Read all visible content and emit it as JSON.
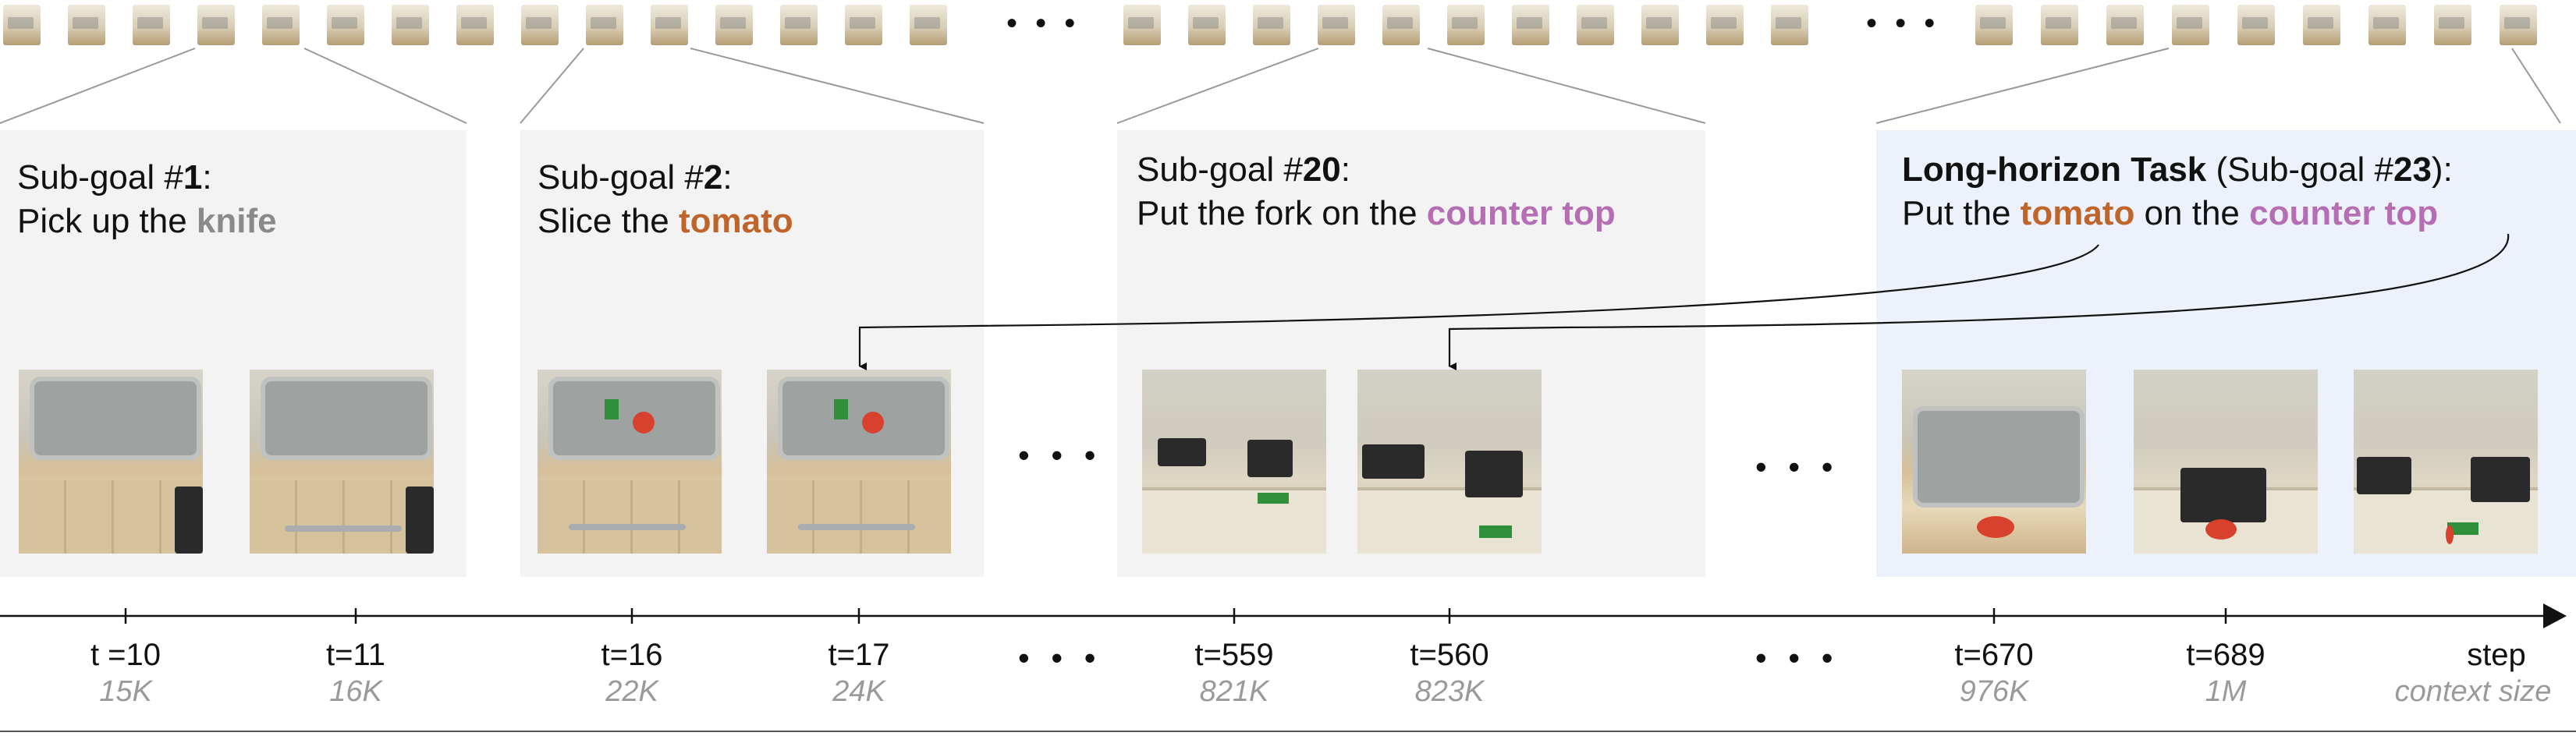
{
  "strip": {
    "frame_groups": [
      {
        "icon": "frame-thumbnail",
        "count": 15
      },
      {
        "icon": "frame-thumbnail",
        "count": 11
      },
      {
        "icon": "frame-thumbnail",
        "count": 9
      }
    ],
    "ellipsis": "• • •"
  },
  "panels": [
    {
      "prefix": "Sub-goal #",
      "num": "1",
      "colon": ":",
      "line2_pre": "Pick up the ",
      "obj": "knife",
      "obj_color": "#8a8a8a"
    },
    {
      "prefix": "Sub-goal #",
      "num": "2",
      "colon": ":",
      "line2_pre": "Slice the ",
      "obj": "tomato",
      "obj_color": "#c0652a"
    },
    {
      "prefix": "Sub-goal #",
      "num": "20",
      "colon": ":",
      "line2_pre": "Put the fork on the ",
      "obj": "counter top",
      "obj_color": "#b56db3"
    },
    {
      "bold": "Long-horizon Task",
      "mid": " (Sub-goal #",
      "num": "23",
      "colon": "):",
      "line2_pre": "Put the ",
      "obj1": "tomato",
      "line2_mid": " on the ",
      "obj2": "counter top",
      "panel_color": "#edf1fb"
    }
  ],
  "ellipsis": "• • •",
  "timeline": {
    "ticks": [
      {
        "t": "t =10",
        "ctx": "15K"
      },
      {
        "t": "t=11",
        "ctx": "16K"
      },
      {
        "t": "t=16",
        "ctx": "22K"
      },
      {
        "t": "t=17",
        "ctx": "24K"
      },
      {
        "t": "t=559",
        "ctx": "821K"
      },
      {
        "t": "t=560",
        "ctx": "823K"
      },
      {
        "t": "t=670",
        "ctx": "976K"
      },
      {
        "t": "t=689",
        "ctx": "1M"
      }
    ],
    "axis_label": "step",
    "axis_sublabel": "context size"
  },
  "colors": {
    "tomato": "#c0652a",
    "counter": "#b56db3",
    "knife": "#8a8a8a",
    "context": "#9a9a9a"
  }
}
